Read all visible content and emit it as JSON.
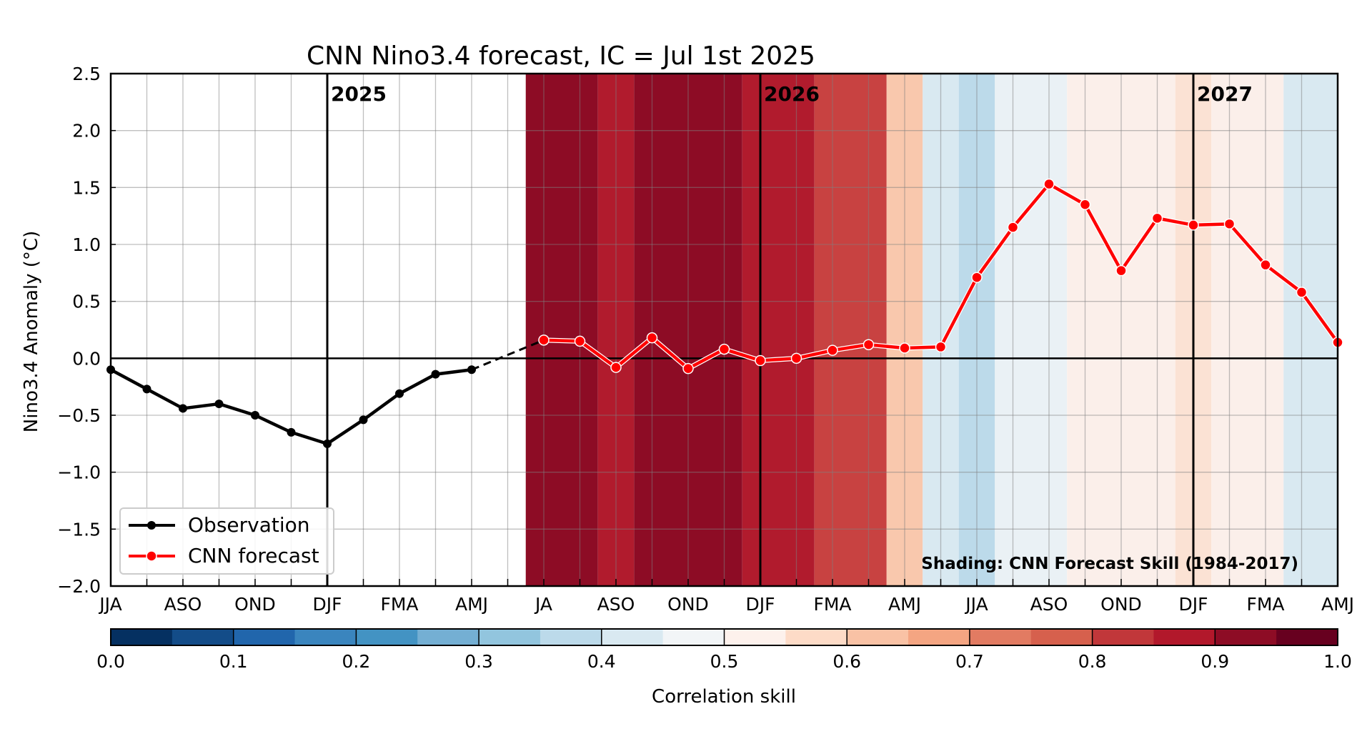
{
  "chart_data": {
    "type": "line",
    "title": "CNN Nino3.4 forecast, IC = Jul 1st 2025",
    "ylabel": "Nino3.4 Anomaly (°C)",
    "ylim": [
      -2.0,
      2.5
    ],
    "yticks": [
      "2.5",
      "2.0",
      "1.5",
      "1.0",
      "0.5",
      "0.0",
      "−0.5",
      "−1.0",
      "−1.5",
      "−2.0"
    ],
    "ytick_values": [
      2.5,
      2.0,
      1.5,
      1.0,
      0.5,
      0.0,
      -0.5,
      -1.0,
      -1.5,
      -2.0
    ],
    "xlim": [
      0,
      34
    ],
    "xtick_labels": [
      "JJA",
      "ASO",
      "OND",
      "DJF",
      "FMA",
      "AMJ",
      "JA",
      "ASO",
      "OND",
      "DJF",
      "FMA",
      "AMJ",
      "JJA",
      "ASO",
      "OND",
      "DJF",
      "FMA",
      "AMJ"
    ],
    "grid": true,
    "year_lines": [
      {
        "label": "2025",
        "x": 6
      },
      {
        "label": "2026",
        "x": 18
      },
      {
        "label": "2027",
        "x": 30
      }
    ],
    "legend_position": "lower-left",
    "series": [
      {
        "name": "Observation",
        "color": "#000000",
        "x": [
          0,
          1,
          2,
          3,
          4,
          5,
          6,
          7,
          8,
          9,
          10
        ],
        "values": [
          -0.1,
          -0.27,
          -0.44,
          -0.4,
          -0.5,
          -0.65,
          -0.75,
          -0.54,
          -0.31,
          -0.14,
          -0.1
        ]
      },
      {
        "name": "CNN forecast",
        "color": "#ff0000",
        "x": [
          12,
          13,
          14,
          15,
          16,
          17,
          18,
          19,
          20,
          21,
          22,
          23,
          24,
          25,
          26,
          27,
          28,
          29,
          30,
          31,
          32,
          33,
          34
        ],
        "values": [
          0.16,
          0.15,
          -0.08,
          0.18,
          -0.09,
          0.08,
          -0.02,
          0.0,
          0.07,
          0.12,
          0.09,
          0.1,
          0.71,
          1.15,
          1.53,
          1.35,
          0.77,
          1.23,
          1.17,
          1.18,
          0.82,
          0.58,
          0.14
        ]
      }
    ],
    "connector": {
      "x": [
        10,
        12
      ],
      "values": [
        -0.1,
        0.16
      ],
      "style": "dashed"
    },
    "shading_note": "Shading: CNN Forecast Skill (1984-2017)",
    "shading": [
      {
        "x0": 11.5,
        "x1": 13.5,
        "skill": 0.92,
        "color": "#8d0c25"
      },
      {
        "x0": 13.5,
        "x1": 14.5,
        "skill": 0.87,
        "color": "#b11b2d"
      },
      {
        "x0": 14.5,
        "x1": 17.5,
        "skill": 0.92,
        "color": "#8d0c25"
      },
      {
        "x0": 17.5,
        "x1": 19.5,
        "skill": 0.87,
        "color": "#b11b2d"
      },
      {
        "x0": 19.5,
        "x1": 21.5,
        "skill": 0.82,
        "color": "#c84241"
      },
      {
        "x0": 21.5,
        "x1": 22.5,
        "skill": 0.62,
        "color": "#f9c8ad"
      },
      {
        "x0": 22.5,
        "x1": 23.5,
        "skill": 0.43,
        "color": "#d9e9f1"
      },
      {
        "x0": 23.5,
        "x1": 24.5,
        "skill": 0.37,
        "color": "#bcdaea"
      },
      {
        "x0": 24.5,
        "x1": 26.5,
        "skill": 0.47,
        "color": "#eaf1f5"
      },
      {
        "x0": 26.5,
        "x1": 29.5,
        "skill": 0.52,
        "color": "#fbefea"
      },
      {
        "x0": 29.5,
        "x1": 30.5,
        "skill": 0.57,
        "color": "#fbe2d4"
      },
      {
        "x0": 30.5,
        "x1": 32.5,
        "skill": 0.52,
        "color": "#fbefea"
      },
      {
        "x0": 32.5,
        "x1": 34.0,
        "skill": 0.43,
        "color": "#d9e9f1"
      }
    ],
    "colorbar": {
      "label": "Correlation skill",
      "range": [
        0.0,
        1.0
      ],
      "tick_labels": [
        "0.0",
        "0.1",
        "0.2",
        "0.3",
        "0.4",
        "0.5",
        "0.6",
        "0.7",
        "0.8",
        "0.9",
        "1.0"
      ],
      "colors": [
        "#053061",
        "#134c88",
        "#2166ac",
        "#3a85be",
        "#4393c3",
        "#74afd3",
        "#92c5de",
        "#bcdaea",
        "#d9e9f1",
        "#f2f5f7",
        "#fdf1ec",
        "#fddbc7",
        "#f9c2a5",
        "#f4a582",
        "#e27b62",
        "#d6604d",
        "#c1373a",
        "#b2182b",
        "#8d0c25",
        "#67001f"
      ]
    }
  }
}
